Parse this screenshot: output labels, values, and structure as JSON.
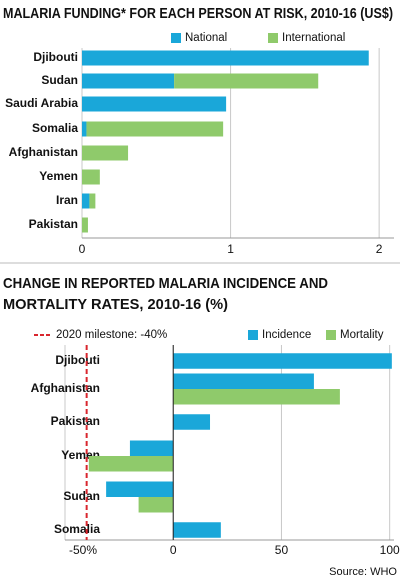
{
  "chart_data": [
    {
      "type": "hbar-stacked",
      "title": "MALARIA FUNDING* FOR EACH PERSON AT RISK, 2010-16 (US$)",
      "categories": [
        "Djibouti",
        "Sudan",
        "Saudi Arabia",
        "Somalia",
        "Afghanistan",
        "Yemen",
        "Iran",
        "Pakistan"
      ],
      "series": [
        {
          "name": "National",
          "color": "#1aa7d9",
          "values": [
            1.93,
            0.62,
            0.97,
            0.03,
            0,
            0,
            0.05,
            0
          ]
        },
        {
          "name": "International",
          "color": "#8fca6b",
          "values": [
            0,
            0.97,
            0,
            0.92,
            0.31,
            0.12,
            0.04,
            0.04
          ]
        }
      ],
      "xlim": [
        0,
        2.1
      ],
      "xticks": [
        0,
        1,
        2
      ],
      "grid": true
    },
    {
      "type": "hbar-grouped",
      "title_lines": [
        "CHANGE IN REPORTED MALARIA INCIDENCE AND",
        "MORTALITY RATES, 2010-16 (%)"
      ],
      "categories": [
        "Djibouti",
        "Afghanistan",
        "Pakistan",
        "Yemen",
        "Sudan",
        "Somalia"
      ],
      "series": [
        {
          "name": "Incidence",
          "color": "#1aa7d9",
          "values": [
            101,
            65,
            17,
            -20,
            -31,
            22
          ]
        },
        {
          "name": "Mortality",
          "color": "#8fca6b",
          "values": [
            null,
            77,
            null,
            -39,
            -16,
            null
          ]
        }
      ],
      "milestone": {
        "value": -40,
        "label": "2020 milestone: -40%",
        "color": "#d9262e"
      },
      "xlim": [
        -50,
        102
      ],
      "xticks": [
        {
          "value": -50,
          "label": "-50%"
        },
        0,
        50,
        100
      ],
      "grid": true,
      "source": "Source: WHO"
    }
  ]
}
